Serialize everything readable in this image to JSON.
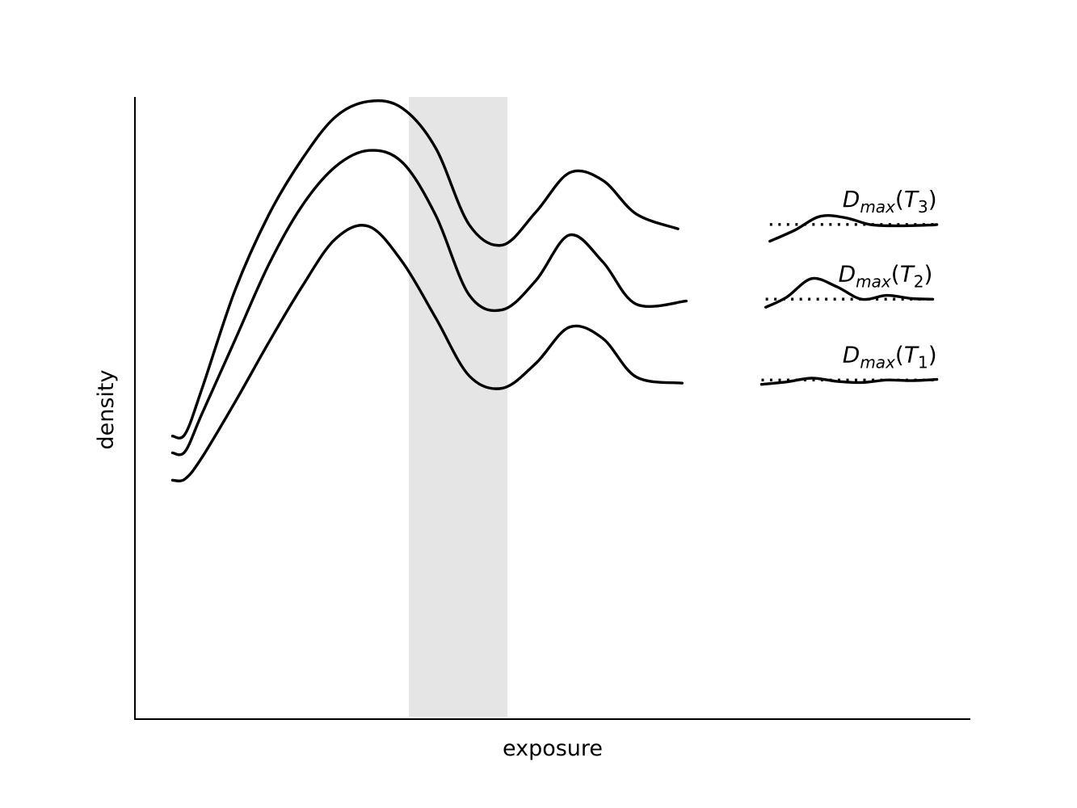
{
  "chart_data": {
    "type": "line",
    "title": "",
    "xlabel": "exposure",
    "ylabel": "density",
    "xlim": [
      0,
      10
    ],
    "ylim": [
      0,
      10
    ],
    "grid": false,
    "x_ticks_shown": false,
    "y_ticks_shown": false,
    "line_color": "#000000",
    "band_color": "#e5e5e5",
    "shaded_band": {
      "x_start": 3.28,
      "x_end": 4.46
    },
    "series": [
      {
        "curve": [
          [
            0.45,
            4.55
          ],
          [
            0.6,
            4.58
          ],
          [
            0.8,
            5.3
          ],
          [
            1.2,
            6.9
          ],
          [
            1.6,
            8.1
          ],
          [
            2.0,
            9.0
          ],
          [
            2.4,
            9.68
          ],
          [
            2.8,
            9.93
          ],
          [
            3.2,
            9.82
          ],
          [
            3.6,
            9.18
          ],
          [
            4.0,
            7.95
          ],
          [
            4.4,
            7.62
          ],
          [
            4.8,
            8.15
          ],
          [
            5.2,
            8.78
          ],
          [
            5.6,
            8.66
          ],
          [
            6.0,
            8.12
          ],
          [
            6.5,
            7.88
          ]
        ],
        "inset": [
          [
            7.6,
            7.68
          ],
          [
            7.9,
            7.86
          ],
          [
            8.2,
            8.08
          ],
          [
            8.5,
            8.06
          ],
          [
            8.8,
            7.95
          ],
          [
            9.1,
            7.93
          ],
          [
            9.5,
            7.94
          ],
          [
            9.6,
            7.95
          ]
        ],
        "baseline": 7.95,
        "label_text": "D",
        "label_sub": "max",
        "label_arg": "T",
        "label_arg_sub": "3",
        "label_parens": [
          "(",
          ")"
        ]
      },
      {
        "curve": [
          [
            0.45,
            4.28
          ],
          [
            0.6,
            4.3
          ],
          [
            0.8,
            4.9
          ],
          [
            1.2,
            6.1
          ],
          [
            1.6,
            7.3
          ],
          [
            2.0,
            8.25
          ],
          [
            2.4,
            8.88
          ],
          [
            2.8,
            9.14
          ],
          [
            3.2,
            8.95
          ],
          [
            3.6,
            8.1
          ],
          [
            4.0,
            6.82
          ],
          [
            4.4,
            6.58
          ],
          [
            4.8,
            7.05
          ],
          [
            5.2,
            7.78
          ],
          [
            5.6,
            7.35
          ],
          [
            6.0,
            6.67
          ],
          [
            6.6,
            6.72
          ]
        ],
        "inset": [
          [
            7.55,
            6.62
          ],
          [
            7.8,
            6.78
          ],
          [
            8.1,
            7.08
          ],
          [
            8.4,
            6.95
          ],
          [
            8.7,
            6.75
          ],
          [
            9.0,
            6.81
          ],
          [
            9.3,
            6.76
          ],
          [
            9.55,
            6.75
          ]
        ],
        "baseline": 6.75,
        "label_text": "D",
        "label_sub": "max",
        "label_arg": "T",
        "label_arg_sub": "2",
        "label_parens": [
          "(",
          ")"
        ]
      },
      {
        "curve": [
          [
            0.45,
            3.84
          ],
          [
            0.6,
            3.86
          ],
          [
            0.8,
            4.2
          ],
          [
            1.2,
            5.1
          ],
          [
            1.6,
            6.05
          ],
          [
            2.0,
            6.95
          ],
          [
            2.4,
            7.72
          ],
          [
            2.8,
            7.92
          ],
          [
            3.2,
            7.35
          ],
          [
            3.6,
            6.45
          ],
          [
            4.0,
            5.52
          ],
          [
            4.4,
            5.32
          ],
          [
            4.8,
            5.72
          ],
          [
            5.2,
            6.3
          ],
          [
            5.6,
            6.12
          ],
          [
            6.0,
            5.5
          ],
          [
            6.55,
            5.4
          ]
        ],
        "inset": [
          [
            7.5,
            5.38
          ],
          [
            7.8,
            5.42
          ],
          [
            8.1,
            5.48
          ],
          [
            8.4,
            5.43
          ],
          [
            8.7,
            5.41
          ],
          [
            9.0,
            5.45
          ],
          [
            9.3,
            5.44
          ],
          [
            9.6,
            5.46
          ]
        ],
        "baseline": 5.45,
        "label_text": "D",
        "label_sub": "max",
        "label_arg": "T",
        "label_arg_sub": "1",
        "label_parens": [
          "(",
          ")"
        ]
      }
    ]
  }
}
